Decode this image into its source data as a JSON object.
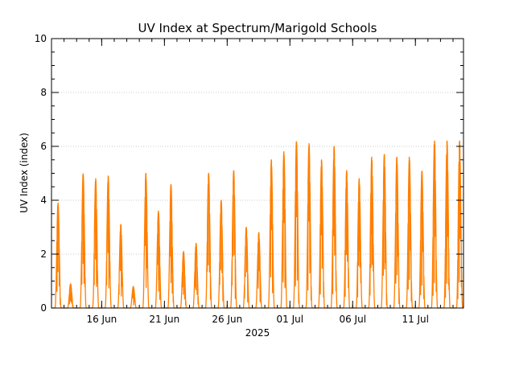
{
  "chart_data": {
    "type": "line",
    "title": "UV Index at Spectrum/Marigold Schools",
    "xlabel": "2025",
    "ylabel": "UV Index (index)",
    "xlim": [
      "2025-06-12T00:00",
      "2025-07-14T20:00"
    ],
    "ylim": [
      0,
      10
    ],
    "yticks": [
      0,
      2,
      4,
      6,
      8,
      10
    ],
    "ytick_labels": [
      "0",
      "2",
      "4",
      "6",
      "8",
      "10"
    ],
    "xticks": [
      "2025-06-16",
      "2025-06-21",
      "2025-06-26",
      "2025-07-01",
      "2025-07-06",
      "2025-07-11"
    ],
    "xtick_labels": [
      "16 Jun",
      "21 Jun",
      "26 Jun",
      "01 Jul",
      "06 Jul",
      "11 Jul"
    ],
    "grid": true,
    "legend": "none",
    "series": [
      {
        "color": "#ff7f00",
        "daily_peak": [
          {
            "date": "2025-06-12",
            "peak": 3.9
          },
          {
            "date": "2025-06-13",
            "peak": 0.9
          },
          {
            "date": "2025-06-14",
            "peak": 5.0
          },
          {
            "date": "2025-06-15",
            "peak": 4.8
          },
          {
            "date": "2025-06-16",
            "peak": 4.9
          },
          {
            "date": "2025-06-17",
            "peak": 3.1
          },
          {
            "date": "2025-06-18",
            "peak": 0.8
          },
          {
            "date": "2025-06-19",
            "peak": 5.0
          },
          {
            "date": "2025-06-20",
            "peak": 3.6
          },
          {
            "date": "2025-06-21",
            "peak": 4.6
          },
          {
            "date": "2025-06-22",
            "peak": 2.1
          },
          {
            "date": "2025-06-23",
            "peak": 2.4
          },
          {
            "date": "2025-06-24",
            "peak": 5.0
          },
          {
            "date": "2025-06-25",
            "peak": 4.0
          },
          {
            "date": "2025-06-26",
            "peak": 5.1
          },
          {
            "date": "2025-06-27",
            "peak": 3.0
          },
          {
            "date": "2025-06-28",
            "peak": 2.8
          },
          {
            "date": "2025-06-29",
            "peak": 5.5
          },
          {
            "date": "2025-06-30",
            "peak": 5.8
          },
          {
            "date": "2025-07-01",
            "peak": 6.2
          },
          {
            "date": "2025-07-02",
            "peak": 6.1
          },
          {
            "date": "2025-07-03",
            "peak": 5.5
          },
          {
            "date": "2025-07-04",
            "peak": 6.0
          },
          {
            "date": "2025-07-05",
            "peak": 5.1
          },
          {
            "date": "2025-07-06",
            "peak": 4.8
          },
          {
            "date": "2025-07-07",
            "peak": 5.6
          },
          {
            "date": "2025-07-08",
            "peak": 5.7
          },
          {
            "date": "2025-07-09",
            "peak": 5.6
          },
          {
            "date": "2025-07-10",
            "peak": 5.6
          },
          {
            "date": "2025-07-11",
            "peak": 5.1
          },
          {
            "date": "2025-07-12",
            "peak": 6.2
          },
          {
            "date": "2025-07-13",
            "peak": 6.2
          },
          {
            "date": "2025-07-14",
            "peak": 6.2
          }
        ]
      }
    ]
  }
}
